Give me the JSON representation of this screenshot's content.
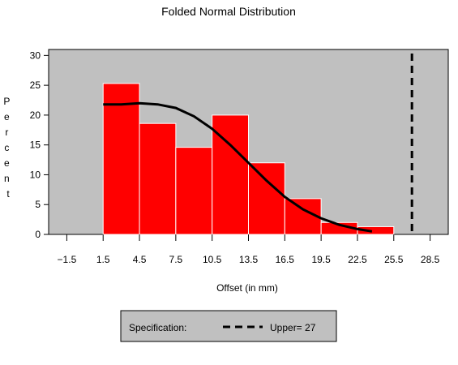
{
  "chart_data": {
    "type": "bar",
    "title": "Folded Normal Distribution",
    "xlabel": "Offset (in mm)",
    "ylabel": "Percent",
    "xlim": [
      -3,
      30
    ],
    "ylim": [
      0,
      31
    ],
    "x_ticks": [
      -1.5,
      1.5,
      4.5,
      7.5,
      10.5,
      13.5,
      16.5,
      19.5,
      22.5,
      25.5,
      28.5
    ],
    "x_tick_labels": [
      "−1.5",
      "1.5",
      "4.5",
      "7.5",
      "10.5",
      "13.5",
      "16.5",
      "19.5",
      "22.5",
      "25.5",
      "28.5"
    ],
    "y_ticks": [
      0,
      5,
      10,
      15,
      20,
      25,
      30
    ],
    "bins": [
      {
        "start": 1.5,
        "end": 4.5,
        "value": 25.3
      },
      {
        "start": 4.5,
        "end": 7.5,
        "value": 18.6
      },
      {
        "start": 7.5,
        "end": 10.5,
        "value": 14.6
      },
      {
        "start": 10.5,
        "end": 13.5,
        "value": 20.0
      },
      {
        "start": 13.5,
        "end": 16.5,
        "value": 12.0
      },
      {
        "start": 16.5,
        "end": 19.5,
        "value": 6.0
      },
      {
        "start": 19.5,
        "end": 22.5,
        "value": 2.0
      },
      {
        "start": 22.5,
        "end": 25.5,
        "value": 1.3
      }
    ],
    "curve": {
      "x": [
        1.5,
        3.0,
        4.5,
        6.0,
        7.5,
        9.0,
        10.5,
        12.0,
        13.5,
        15.0,
        16.5,
        18.0,
        19.5,
        21.0,
        22.5,
        23.7
      ],
      "y": [
        21.8,
        21.8,
        22.0,
        21.8,
        21.2,
        19.8,
        17.7,
        15.0,
        12.0,
        9.0,
        6.3,
        4.2,
        2.7,
        1.6,
        0.9,
        0.5
      ]
    },
    "spec_upper": 27,
    "colors": {
      "plot_bg": "#c0c0c0",
      "bar_fill": "#ff0000",
      "bar_edge": "#ffffff",
      "curve": "#000000",
      "legend_bg": "#c0c0c0"
    },
    "grid": false,
    "legend_position": "bottom",
    "legend": {
      "label": "Specification:",
      "entry": "Upper= 27"
    }
  }
}
